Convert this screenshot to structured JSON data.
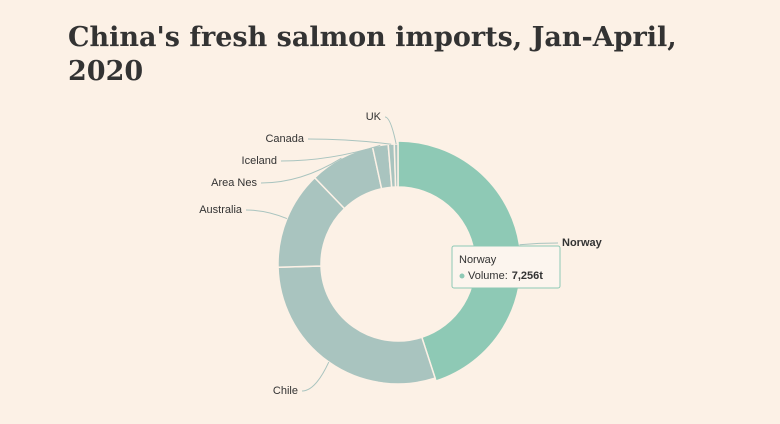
{
  "chart_data": {
    "type": "donut",
    "title": "China's fresh salmon imports, Jan-April, 2020",
    "categories": [
      "Norway",
      "Chile",
      "Australia",
      "Area Nes",
      "Iceland",
      "Canada",
      "UK"
    ],
    "values": [
      7256,
      4770,
      2130,
      1420,
      340,
      130,
      80
    ],
    "value_labels": [
      "7,256t",
      null,
      null,
      null,
      null,
      null,
      null
    ],
    "colors": [
      "#8ec9b5",
      "#a9c4bf",
      "#a9c4bf",
      "#a9c4bf",
      "#a9c4bf",
      "#a9c4bf",
      "#a9c4bf"
    ],
    "tooltip_label": "Volume:"
  }
}
